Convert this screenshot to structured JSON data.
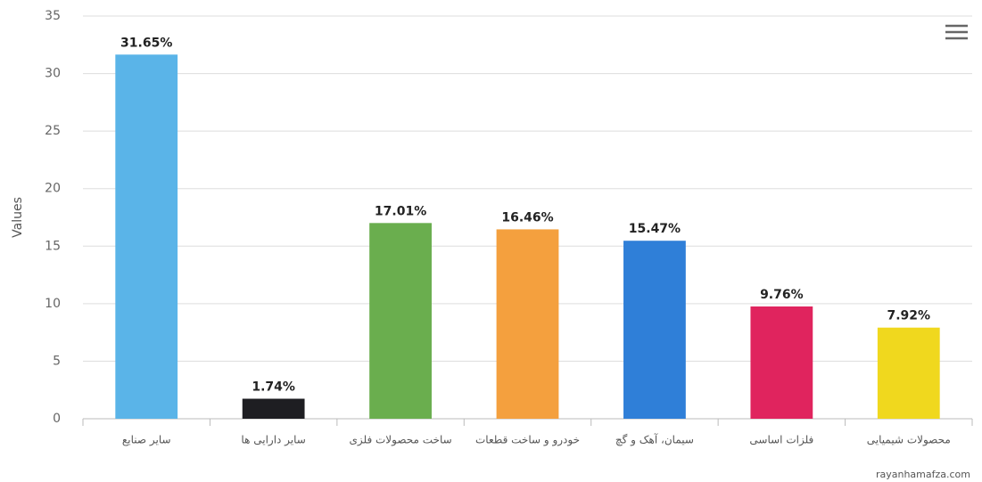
{
  "chart_data": {
    "type": "bar",
    "y_label": "Values",
    "categories": [
      "سایر صنایع",
      "سایر دارایی ها",
      "ساخت محصولات فلزی",
      "خودرو و ساخت قطعات",
      "سیمان، آهک و گچ",
      "فلزات اساسی",
      "محصولات شیمیایی"
    ],
    "values": [
      31.65,
      1.74,
      17.01,
      16.46,
      15.47,
      9.76,
      7.92
    ],
    "value_labels": [
      "31.65%",
      "1.74%",
      "17.01%",
      "16.46%",
      "15.47%",
      "9.76%",
      "7.92%"
    ],
    "colors": [
      "#5ab4e8",
      "#1e1e22",
      "#6aae4e",
      "#f4a03e",
      "#2f7fd8",
      "#e0245e",
      "#f0d81e"
    ],
    "ylim": [
      0,
      35
    ],
    "yticks": [
      0,
      5,
      10,
      15,
      20,
      25,
      30,
      35
    ],
    "grid": true,
    "credit": "rayanhamafza.com"
  }
}
